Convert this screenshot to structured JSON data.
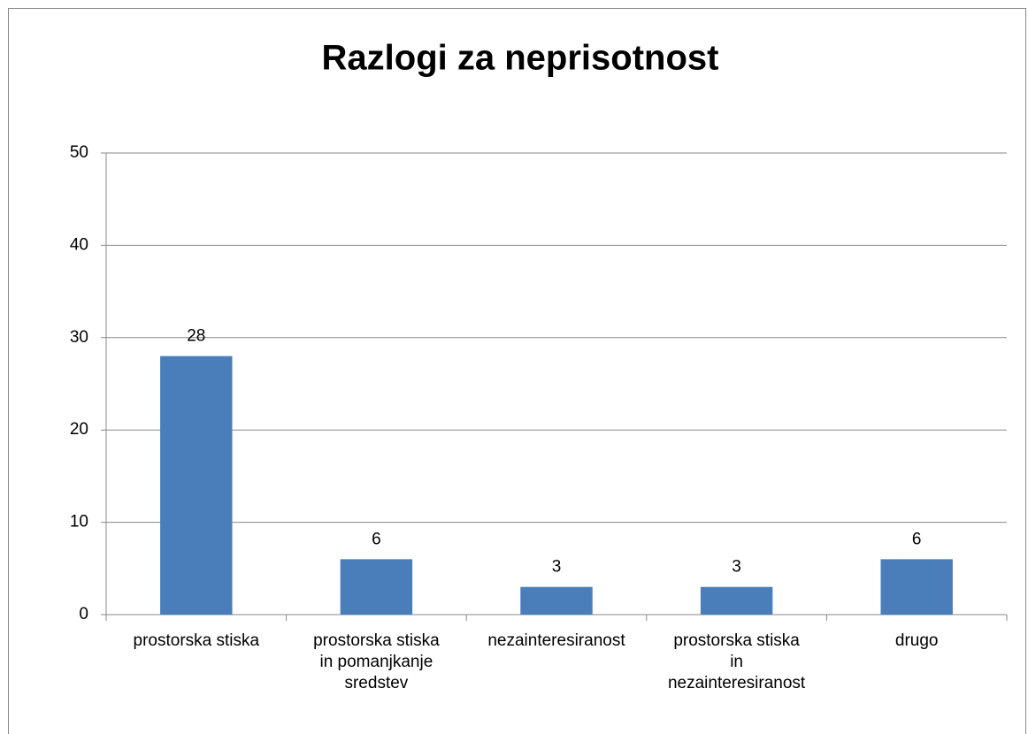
{
  "chart_data": {
    "type": "bar",
    "title": "Razlogi za neprisotnost",
    "categories": [
      "prostorska stiska",
      "prostorska stiska in pomanjkanje sredstev",
      "nezainteresiranost",
      "prostorska stiska in nezainteresiranost",
      "drugo"
    ],
    "values": [
      28,
      6,
      3,
      3,
      6
    ],
    "color": "#4a7ebb",
    "ylim": [
      0,
      50
    ],
    "yticks": [
      0,
      10,
      20,
      30,
      40,
      50
    ],
    "grid": true
  }
}
